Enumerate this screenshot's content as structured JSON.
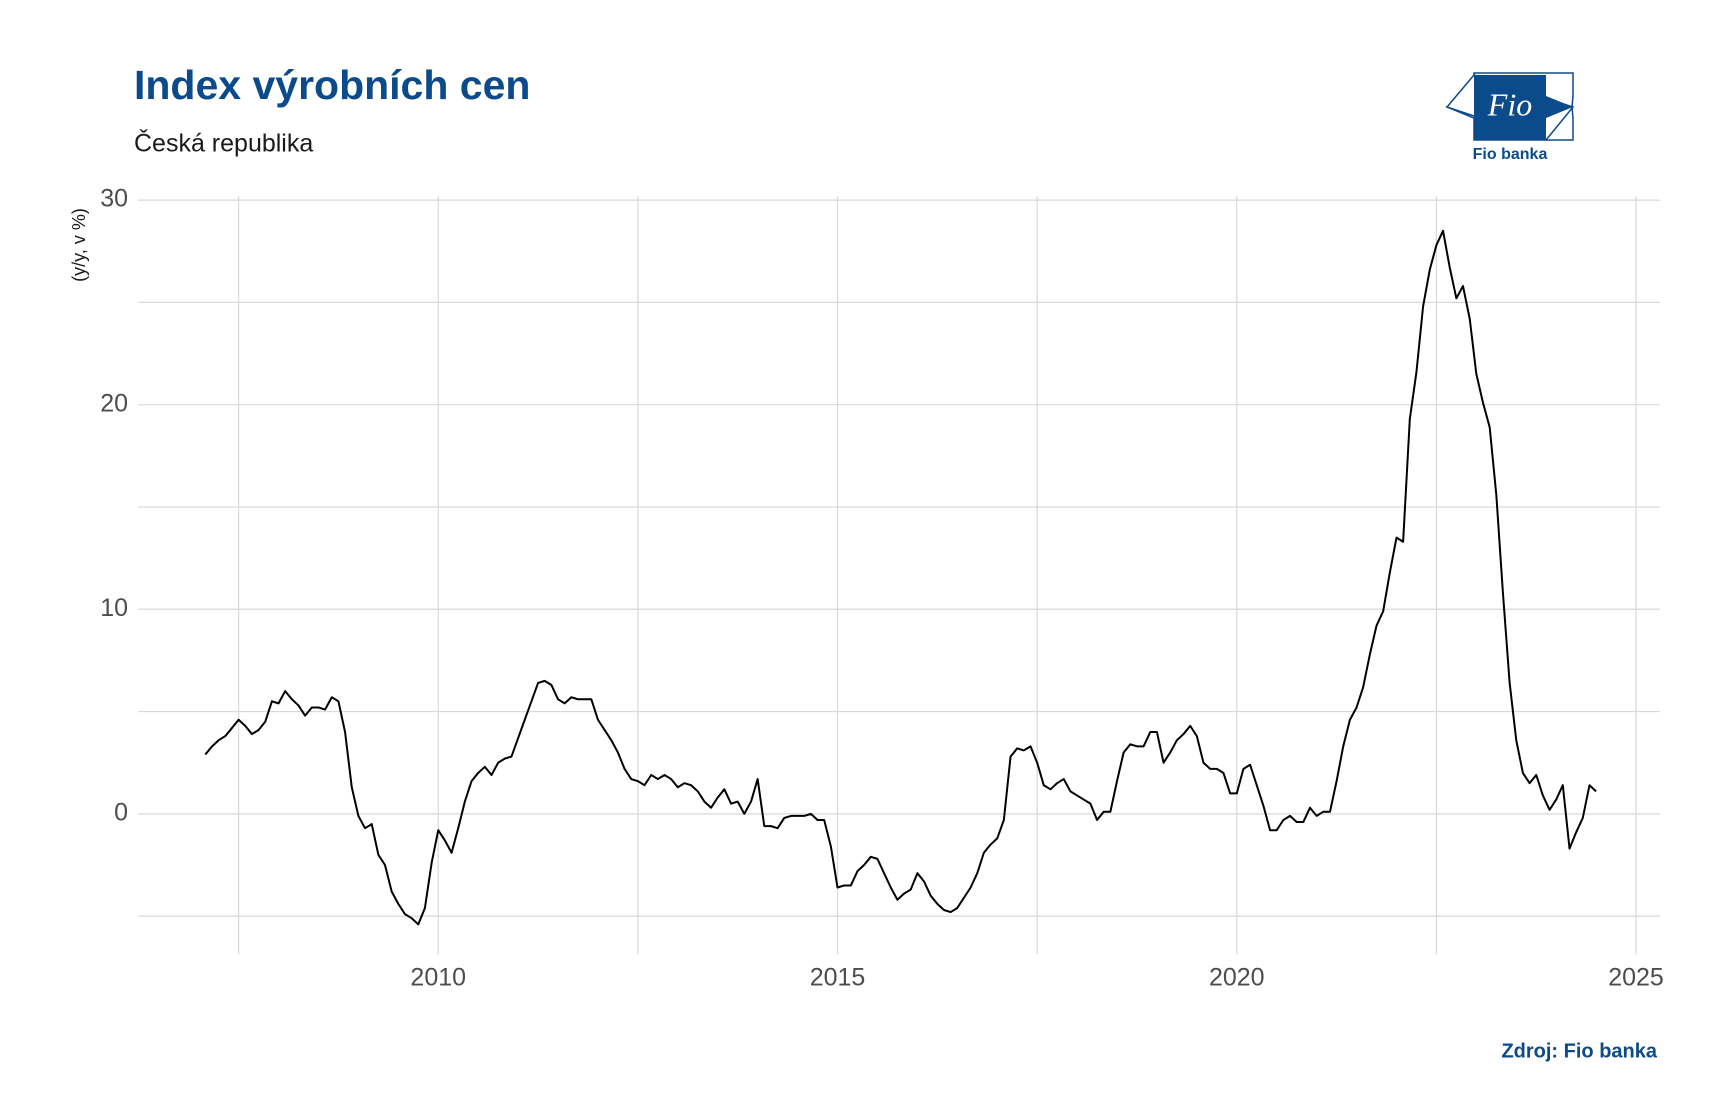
{
  "chart_data": {
    "type": "line",
    "title": "Index výrobních cen",
    "subtitle": "Česká republika",
    "y_label": "(y/y, v %)",
    "source": "Zdroj: Fio banka",
    "color": "#000000",
    "grid": true,
    "xlim": [
      2006.24,
      2025.3
    ],
    "ylim": [
      -6.85,
      30.2
    ],
    "xticks": [
      2010,
      2015,
      2020,
      2025
    ],
    "yticks": [
      0,
      10,
      20,
      30
    ],
    "xminorticks": [
      2007.5,
      2012.5,
      2017.5,
      2022.5
    ],
    "yminorticks": [
      -5,
      5,
      15,
      25
    ],
    "x": [
      2007.083,
      2007.167,
      2007.25,
      2007.333,
      2007.417,
      2007.5,
      2007.583,
      2007.667,
      2007.75,
      2007.833,
      2007.917,
      2008,
      2008.083,
      2008.167,
      2008.25,
      2008.333,
      2008.417,
      2008.5,
      2008.583,
      2008.667,
      2008.75,
      2008.833,
      2008.917,
      2009,
      2009.083,
      2009.167,
      2009.25,
      2009.333,
      2009.417,
      2009.5,
      2009.583,
      2009.667,
      2009.75,
      2009.833,
      2009.917,
      2010,
      2010.083,
      2010.167,
      2010.25,
      2010.333,
      2010.417,
      2010.5,
      2010.583,
      2010.667,
      2010.75,
      2010.833,
      2010.917,
      2011,
      2011.083,
      2011.167,
      2011.25,
      2011.333,
      2011.417,
      2011.5,
      2011.583,
      2011.667,
      2011.75,
      2011.833,
      2011.917,
      2012,
      2012.083,
      2012.167,
      2012.25,
      2012.333,
      2012.417,
      2012.5,
      2012.583,
      2012.667,
      2012.75,
      2012.833,
      2012.917,
      2013,
      2013.083,
      2013.167,
      2013.25,
      2013.333,
      2013.417,
      2013.5,
      2013.583,
      2013.667,
      2013.75,
      2013.833,
      2013.917,
      2014,
      2014.083,
      2014.167,
      2014.25,
      2014.333,
      2014.417,
      2014.5,
      2014.583,
      2014.667,
      2014.75,
      2014.833,
      2014.917,
      2015,
      2015.083,
      2015.167,
      2015.25,
      2015.333,
      2015.417,
      2015.5,
      2015.583,
      2015.667,
      2015.75,
      2015.833,
      2015.917,
      2016,
      2016.083,
      2016.167,
      2016.25,
      2016.333,
      2016.417,
      2016.5,
      2016.583,
      2016.667,
      2016.75,
      2016.833,
      2016.917,
      2017,
      2017.083,
      2017.167,
      2017.25,
      2017.333,
      2017.417,
      2017.5,
      2017.583,
      2017.667,
      2017.75,
      2017.833,
      2017.917,
      2018,
      2018.083,
      2018.167,
      2018.25,
      2018.333,
      2018.417,
      2018.5,
      2018.583,
      2018.667,
      2018.75,
      2018.833,
      2018.917,
      2019,
      2019.083,
      2019.167,
      2019.25,
      2019.333,
      2019.417,
      2019.5,
      2019.583,
      2019.667,
      2019.75,
      2019.833,
      2019.917,
      2020,
      2020.083,
      2020.167,
      2020.25,
      2020.333,
      2020.417,
      2020.5,
      2020.583,
      2020.667,
      2020.75,
      2020.833,
      2020.917,
      2021,
      2021.083,
      2021.167,
      2021.25,
      2021.333,
      2021.417,
      2021.5,
      2021.583,
      2021.667,
      2021.75,
      2021.833,
      2021.917,
      2022,
      2022.083,
      2022.167,
      2022.25,
      2022.333,
      2022.417,
      2022.5,
      2022.583,
      2022.667,
      2022.75,
      2022.833,
      2022.917,
      2023,
      2023.083,
      2023.167,
      2023.25,
      2023.333,
      2023.417,
      2023.5,
      2023.583,
      2023.667,
      2023.75,
      2023.833,
      2023.917,
      2024,
      2024.083,
      2024.167,
      2024.25,
      2024.333,
      2024.417,
      2024.5
    ],
    "values": [
      2.9,
      3.3,
      3.6,
      3.8,
      4.2,
      4.6,
      4.3,
      3.9,
      4.1,
      4.5,
      5.5,
      5.4,
      6.0,
      5.6,
      5.3,
      4.8,
      5.2,
      5.2,
      5.1,
      5.7,
      5.5,
      4.0,
      1.3,
      -0.1,
      -0.7,
      -0.5,
      -2.0,
      -2.5,
      -3.8,
      -4.4,
      -4.9,
      -5.1,
      -5.4,
      -4.6,
      -2.4,
      -0.8,
      -1.3,
      -1.9,
      -0.7,
      0.6,
      1.6,
      2.0,
      2.3,
      1.9,
      2.5,
      2.7,
      2.8,
      3.7,
      4.6,
      5.5,
      6.4,
      6.5,
      6.3,
      5.6,
      5.4,
      5.7,
      5.6,
      5.6,
      5.6,
      4.6,
      4.1,
      3.6,
      3.0,
      2.2,
      1.7,
      1.6,
      1.4,
      1.9,
      1.7,
      1.9,
      1.7,
      1.3,
      1.5,
      1.4,
      1.1,
      0.6,
      0.3,
      0.8,
      1.2,
      0.5,
      0.6,
      0.0,
      0.6,
      1.7,
      -0.6,
      -0.6,
      -0.7,
      -0.2,
      -0.1,
      -0.1,
      -0.1,
      0.0,
      -0.3,
      -0.3,
      -1.6,
      -3.6,
      -3.5,
      -3.5,
      -2.8,
      -2.5,
      -2.1,
      -2.2,
      -2.9,
      -3.6,
      -4.2,
      -3.9,
      -3.7,
      -2.9,
      -3.3,
      -4.0,
      -4.4,
      -4.7,
      -4.8,
      -4.6,
      -4.1,
      -3.6,
      -2.9,
      -1.9,
      -1.5,
      -1.2,
      -0.3,
      2.8,
      3.2,
      3.1,
      3.3,
      2.5,
      1.4,
      1.2,
      1.5,
      1.7,
      1.1,
      0.9,
      0.7,
      0.5,
      -0.3,
      0.1,
      0.1,
      1.6,
      3.0,
      3.4,
      3.3,
      3.3,
      4.0,
      4.0,
      2.5,
      3.0,
      3.6,
      3.9,
      4.3,
      3.8,
      2.5,
      2.2,
      2.2,
      2.0,
      1.0,
      1.0,
      2.2,
      2.4,
      1.4,
      0.4,
      -0.8,
      -0.8,
      -0.3,
      -0.1,
      -0.4,
      -0.4,
      0.3,
      -0.1,
      0.1,
      0.1,
      1.6,
      3.3,
      4.6,
      5.2,
      6.2,
      7.8,
      9.2,
      9.9,
      11.8,
      13.5,
      13.3,
      19.3,
      21.6,
      24.8,
      26.6,
      27.8,
      28.5,
      26.7,
      25.2,
      25.8,
      24.2,
      21.5,
      20.1,
      18.9,
      15.6,
      10.8,
      6.4,
      3.6,
      2.0,
      1.5,
      1.9,
      0.9,
      0.2,
      0.7,
      1.4,
      -1.7,
      -0.9,
      -0.2,
      1.4,
      1.1
    ]
  },
  "logo": {
    "mark": "Fio",
    "name": "Fio banka"
  }
}
